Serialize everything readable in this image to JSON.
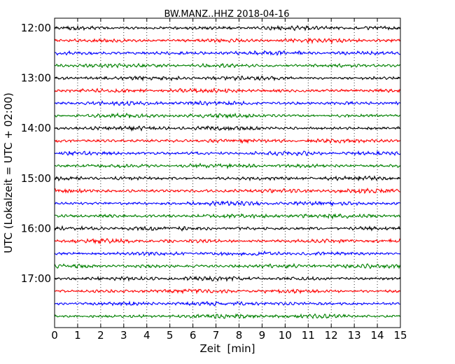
{
  "chart_data": {
    "type": "line",
    "title": "BW.MANZ..HHZ 2018-04-16",
    "xlabel": "Zeit  [min]",
    "ylabel": "UTC (Lokalzeit = UTC + 02:00)",
    "xlim": [
      0,
      15
    ],
    "x_ticks": [
      "0",
      "1",
      "2",
      "3",
      "4",
      "5",
      "6",
      "7",
      "8",
      "9",
      "10",
      "11",
      "12",
      "13",
      "14",
      "15"
    ],
    "y_ticks": [
      "12:00",
      "13:00",
      "14:00",
      "15:00",
      "16:00",
      "17:00"
    ],
    "y_tick_rows": [
      0,
      4,
      8,
      12,
      16,
      20
    ],
    "grid": "vertical dotted",
    "trace_interval_min": 15,
    "trace_count": 24,
    "trace_colors": [
      "#000000",
      "#ff0000",
      "#0000ff",
      "#008000"
    ],
    "trace_start_times": [
      "12:00",
      "12:15",
      "12:30",
      "12:45",
      "13:00",
      "13:15",
      "13:30",
      "13:45",
      "14:00",
      "14:15",
      "14:30",
      "14:45",
      "15:00",
      "15:15",
      "15:30",
      "15:45",
      "16:00",
      "16:15",
      "16:30",
      "16:45",
      "17:00",
      "17:15",
      "17:30",
      "17:45"
    ]
  }
}
